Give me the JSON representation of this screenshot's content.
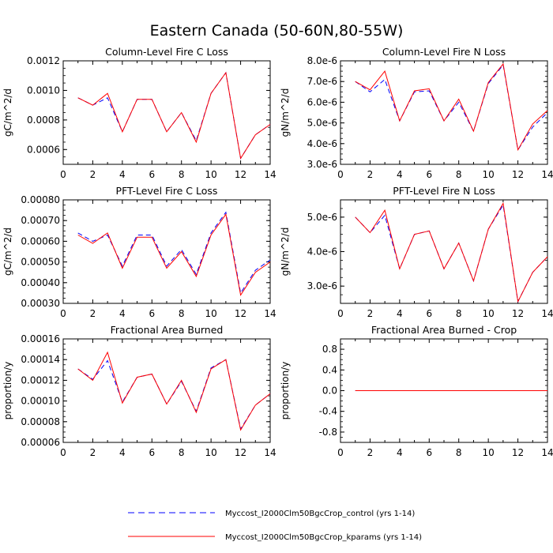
{
  "figure": {
    "title": "Eastern Canada (50-60N,80-55W)"
  },
  "colors": {
    "control": "#0000ff",
    "kparams": "#ff0000",
    "axis": "#000000"
  },
  "legend": {
    "entries": [
      {
        "label": "Myccost_I2000Clm50BgcCrop_control (yrs 1-14)",
        "color": "#0000ff",
        "style": "dashed"
      },
      {
        "label": "Myccost_I2000Clm50BgcCrop_kparams (yrs 1-14)",
        "color": "#ff0000",
        "style": "solid"
      }
    ]
  },
  "chart_data": [
    {
      "type": "line",
      "title": "Column-Level Fire C Loss",
      "ylabel": "gC/m^2/d",
      "x": [
        1,
        2,
        3,
        4,
        5,
        6,
        7,
        8,
        9,
        10,
        11,
        12,
        13,
        14
      ],
      "xlim": [
        0,
        14
      ],
      "xticks": [
        "0",
        "2",
        "4",
        "6",
        "8",
        "10",
        "12",
        "14"
      ],
      "ylim": [
        0.0005,
        0.0012
      ],
      "yticks": [
        0.0006,
        0.0008,
        0.001,
        0.0012
      ],
      "yticklabels": [
        "0.0006",
        "0.0008",
        "0.0010",
        "0.0012"
      ],
      "series": [
        {
          "name": "control",
          "values": [
            0.00095,
            0.0009,
            0.00095,
            0.00072,
            0.00094,
            0.00094,
            0.00072,
            0.00085,
            0.00066,
            0.00098,
            0.00112,
            0.00054,
            0.0007,
            0.00077
          ]
        },
        {
          "name": "kparams",
          "values": [
            0.00095,
            0.0009,
            0.00098,
            0.00072,
            0.00094,
            0.00094,
            0.00072,
            0.00085,
            0.00065,
            0.00098,
            0.00112,
            0.00054,
            0.0007,
            0.00077
          ]
        }
      ]
    },
    {
      "type": "line",
      "title": "Column-Level Fire N Loss",
      "ylabel": "gN/m^2/d",
      "x": [
        1,
        2,
        3,
        4,
        5,
        6,
        7,
        8,
        9,
        10,
        11,
        12,
        13,
        14
      ],
      "xlim": [
        0,
        14
      ],
      "xticks": [
        "0",
        "2",
        "4",
        "6",
        "8",
        "10",
        "12",
        "14"
      ],
      "ylim": [
        3e-06,
        8e-06
      ],
      "yticks": [
        3e-06,
        4e-06,
        5e-06,
        6e-06,
        7e-06,
        8e-06
      ],
      "yticklabels": [
        "3.0e-6",
        "4.0e-6",
        "5.0e-6",
        "6.0e-6",
        "7.0e-6",
        "8.0e-6"
      ],
      "series": [
        {
          "name": "control",
          "values": [
            7e-06,
            6.5e-06,
            7.1e-06,
            5.1e-06,
            6.5e-06,
            6.55e-06,
            5.1e-06,
            6e-06,
            4.6e-06,
            6.9e-06,
            7.8e-06,
            3.7e-06,
            4.8e-06,
            5.5e-06
          ]
        },
        {
          "name": "kparams",
          "values": [
            7e-06,
            6.6e-06,
            7.5e-06,
            5.1e-06,
            6.55e-06,
            6.65e-06,
            5.1e-06,
            6.15e-06,
            4.6e-06,
            6.95e-06,
            7.85e-06,
            3.7e-06,
            4.95e-06,
            5.6e-06
          ]
        }
      ]
    },
    {
      "type": "line",
      "title": "PFT-Level Fire C Loss",
      "ylabel": "gC/m^2/d",
      "x": [
        1,
        2,
        3,
        4,
        5,
        6,
        7,
        8,
        9,
        10,
        11,
        12,
        13,
        14
      ],
      "xlim": [
        0,
        14
      ],
      "xticks": [
        "0",
        "2",
        "4",
        "6",
        "8",
        "10",
        "12",
        "14"
      ],
      "ylim": [
        0.0003,
        0.0008
      ],
      "yticks": [
        0.0003,
        0.0004,
        0.0005,
        0.0006,
        0.0007,
        0.0008
      ],
      "yticklabels": [
        "0.00030",
        "0.00040",
        "0.00050",
        "0.00060",
        "0.00070",
        "0.00080"
      ],
      "series": [
        {
          "name": "control",
          "values": [
            0.00064,
            0.0006,
            0.00063,
            0.00048,
            0.00063,
            0.00063,
            0.00048,
            0.00056,
            0.00044,
            0.00064,
            0.00074,
            0.00035,
            0.00046,
            0.00051
          ]
        },
        {
          "name": "kparams",
          "values": [
            0.00063,
            0.00059,
            0.00064,
            0.00047,
            0.00062,
            0.00062,
            0.00047,
            0.00055,
            0.00043,
            0.00063,
            0.00073,
            0.00034,
            0.00045,
            0.0005
          ]
        }
      ]
    },
    {
      "type": "line",
      "title": "PFT-Level Fire N Loss",
      "ylabel": "gN/m^2/d",
      "x": [
        1,
        2,
        3,
        4,
        5,
        6,
        7,
        8,
        9,
        10,
        11,
        12,
        13,
        14
      ],
      "xlim": [
        0,
        14
      ],
      "xticks": [
        "0",
        "2",
        "4",
        "6",
        "8",
        "10",
        "12",
        "14"
      ],
      "ylim": [
        2.5e-06,
        5.5e-06
      ],
      "yticks": [
        3e-06,
        4e-06,
        5e-06
      ],
      "yticklabels": [
        "3.0e-6",
        "4.0e-6",
        "5.0e-6"
      ],
      "series": [
        {
          "name": "control",
          "values": [
            5e-06,
            4.55e-06,
            5.05e-06,
            3.5e-06,
            4.5e-06,
            4.6e-06,
            3.5e-06,
            4.25e-06,
            3.15e-06,
            4.65e-06,
            5.35e-06,
            2.55e-06,
            3.4e-06,
            3.85e-06
          ]
        },
        {
          "name": "kparams",
          "values": [
            5e-06,
            4.55e-06,
            5.2e-06,
            3.5e-06,
            4.5e-06,
            4.6e-06,
            3.5e-06,
            4.25e-06,
            3.15e-06,
            4.65e-06,
            5.4e-06,
            2.55e-06,
            3.4e-06,
            3.85e-06
          ]
        }
      ]
    },
    {
      "type": "line",
      "title": "Fractional Area Burned",
      "ylabel": "proportion/y",
      "x": [
        1,
        2,
        3,
        4,
        5,
        6,
        7,
        8,
        9,
        10,
        11,
        12,
        13,
        14
      ],
      "xlim": [
        0,
        14
      ],
      "xticks": [
        "0",
        "2",
        "4",
        "6",
        "8",
        "10",
        "12",
        "14"
      ],
      "ylim": [
        6e-05,
        0.00016
      ],
      "yticks": [
        6e-05,
        8e-05,
        0.0001,
        0.00012,
        0.00014,
        0.00016
      ],
      "yticklabels": [
        "0.00006",
        "0.00008",
        "0.00010",
        "0.00012",
        "0.00014",
        "0.00016"
      ],
      "series": [
        {
          "name": "control",
          "values": [
            0.000131,
            0.000121,
            0.000139,
            9.9e-05,
            0.000123,
            0.000126,
            9.7e-05,
            0.000119,
            9e-05,
            0.000132,
            0.00014,
            7.3e-05,
            9.6e-05,
            0.000107
          ]
        },
        {
          "name": "kparams",
          "values": [
            0.000131,
            0.00012,
            0.000147,
            9.8e-05,
            0.000123,
            0.000126,
            9.7e-05,
            0.00012,
            8.9e-05,
            0.000131,
            0.00014,
            7.2e-05,
            9.6e-05,
            0.000107
          ]
        }
      ]
    },
    {
      "type": "line",
      "title": "Fractional Area Burned - Crop",
      "ylabel": "proportion/y",
      "x": [
        1,
        2,
        3,
        4,
        5,
        6,
        7,
        8,
        9,
        10,
        11,
        12,
        13,
        14
      ],
      "xlim": [
        0,
        14
      ],
      "xticks": [
        "0",
        "2",
        "4",
        "6",
        "8",
        "10",
        "12",
        "14"
      ],
      "ylim": [
        -1.0,
        1.0
      ],
      "yticks": [
        -0.8,
        -0.4,
        0.0,
        0.4,
        0.8
      ],
      "yticklabels": [
        "-0.8",
        "-0.4",
        "0.0",
        "0.4",
        "0.8"
      ],
      "series": [
        {
          "name": "control",
          "values": [
            0,
            0,
            0,
            0,
            0,
            0,
            0,
            0,
            0,
            0,
            0,
            0,
            0,
            0
          ]
        },
        {
          "name": "kparams",
          "values": [
            0,
            0,
            0,
            0,
            0,
            0,
            0,
            0,
            0,
            0,
            0,
            0,
            0,
            0
          ]
        }
      ]
    }
  ]
}
